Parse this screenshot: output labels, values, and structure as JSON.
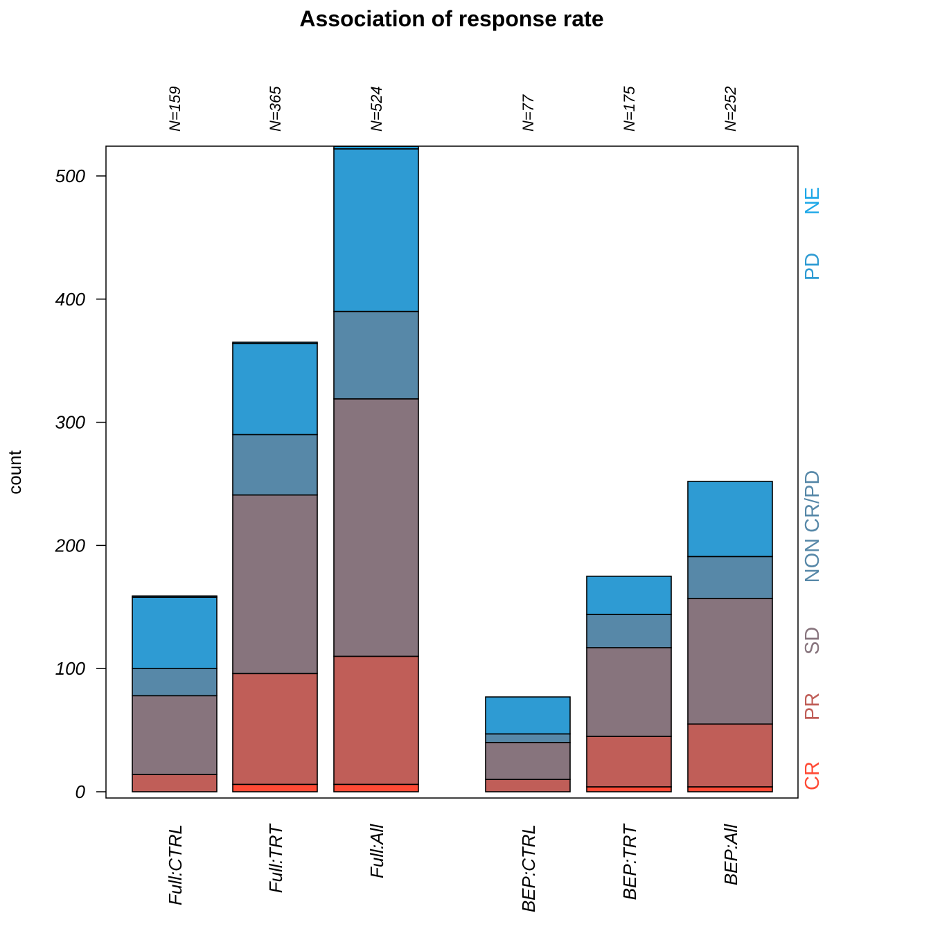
{
  "chart_data": {
    "type": "bar",
    "stacked": true,
    "title": "Association of response rate",
    "xlabel": "",
    "ylabel": "count",
    "ylim": [
      0,
      524
    ],
    "yticks": [
      0,
      100,
      200,
      300,
      400,
      500
    ],
    "categories": [
      "Full:CTRL",
      "Full:TRT",
      "Full:All",
      "BEP:CTRL",
      "BEP:TRT",
      "BEP:All"
    ],
    "n_labels": [
      "N=159",
      "N=365",
      "N=524",
      "N=77",
      "N=175",
      "N=252"
    ],
    "series": [
      {
        "name": "CR",
        "color": "#ff4a35",
        "values": [
          0,
          6,
          6,
          0,
          4,
          4
        ]
      },
      {
        "name": "PR",
        "color": "#c05e58",
        "values": [
          14,
          90,
          104,
          10,
          41,
          51
        ]
      },
      {
        "name": "SD",
        "color": "#87747d",
        "values": [
          64,
          145,
          209,
          30,
          72,
          102
        ]
      },
      {
        "name": "NON CR/PD",
        "color": "#5788a8",
        "values": [
          22,
          49,
          71,
          7,
          27,
          34
        ]
      },
      {
        "name": "PD",
        "color": "#2e9bd3",
        "values": [
          58,
          74,
          132,
          30,
          31,
          61
        ]
      },
      {
        "name": "NE",
        "color": "#1ea8e8",
        "values": [
          1,
          1,
          2,
          0,
          0,
          0
        ]
      }
    ],
    "grid": false,
    "legend_placement": "right"
  }
}
